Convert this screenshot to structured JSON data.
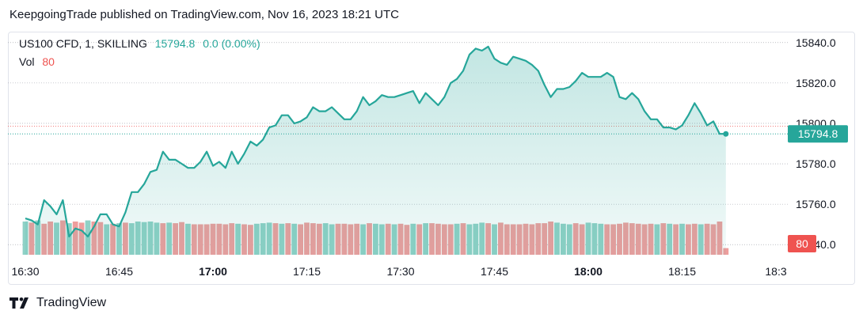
{
  "header": {
    "published": "KeepgoingTrade published on TradingView.com, Nov 16, 2023 18:21 UTC"
  },
  "legend": {
    "symbol": "US100 CFD, 1, SKILLING",
    "last": "15794.8",
    "change": "0.0 (0.00%)",
    "vol_label": "Vol",
    "vol_value": "80"
  },
  "footer": {
    "brand": "TradingView"
  },
  "colors": {
    "line": "#26a69a",
    "up": "#26a69a",
    "down": "#ef5350",
    "up_bar": "#8fd1c6",
    "down_bar": "#ee9e9d"
  },
  "chart_data": {
    "type": "area",
    "ylim": [
      15735,
      15845
    ],
    "x_range_minutes": [
      0,
      125
    ],
    "yticks": [
      "15840.0",
      "15820.0",
      "15800.0",
      "15780.0",
      "15760.0",
      "15740.0"
    ],
    "ytick_values": [
      15840,
      15820,
      15800,
      15780,
      15760,
      15740
    ],
    "xticks": [
      {
        "label": "16:30",
        "minute": 0,
        "bold": false
      },
      {
        "label": "16:45",
        "minute": 15,
        "bold": false
      },
      {
        "label": "17:00",
        "minute": 30,
        "bold": true
      },
      {
        "label": "17:15",
        "minute": 45,
        "bold": false
      },
      {
        "label": "17:30",
        "minute": 60,
        "bold": false
      },
      {
        "label": "17:45",
        "minute": 75,
        "bold": false
      },
      {
        "label": "18:00",
        "minute": 90,
        "bold": true
      },
      {
        "label": "18:15",
        "minute": 105,
        "bold": false
      },
      {
        "label": "18:3",
        "minute": 120,
        "bold": false
      }
    ],
    "price_label": "15794.8",
    "last_price": 15794.8,
    "vol_label": "80",
    "price": [
      [
        0,
        15753
      ],
      [
        1,
        15752
      ],
      [
        2,
        15750
      ],
      [
        3,
        15762
      ],
      [
        4,
        15759
      ],
      [
        5,
        15755
      ],
      [
        6,
        15762
      ],
      [
        7,
        15744
      ],
      [
        8,
        15748
      ],
      [
        9,
        15747
      ],
      [
        10,
        15744
      ],
      [
        11,
        15749
      ],
      [
        12,
        15755
      ],
      [
        13,
        15755
      ],
      [
        14,
        15750
      ],
      [
        15,
        15749
      ],
      [
        16,
        15756
      ],
      [
        17,
        15766
      ],
      [
        18,
        15766
      ],
      [
        19,
        15770
      ],
      [
        20,
        15776
      ],
      [
        21,
        15777
      ],
      [
        22,
        15786
      ],
      [
        23,
        15782
      ],
      [
        24,
        15782
      ],
      [
        25,
        15780
      ],
      [
        26,
        15778
      ],
      [
        27,
        15778
      ],
      [
        28,
        15781
      ],
      [
        29,
        15786
      ],
      [
        30,
        15779
      ],
      [
        31,
        15781
      ],
      [
        32,
        15778
      ],
      [
        33,
        15786
      ],
      [
        34,
        15780
      ],
      [
        35,
        15785
      ],
      [
        36,
        15791
      ],
      [
        37,
        15789
      ],
      [
        38,
        15792
      ],
      [
        39,
        15798
      ],
      [
        40,
        15799
      ],
      [
        41,
        15804
      ],
      [
        42,
        15804
      ],
      [
        43,
        15800
      ],
      [
        44,
        15801
      ],
      [
        45,
        15803
      ],
      [
        46,
        15808
      ],
      [
        47,
        15806
      ],
      [
        48,
        15806
      ],
      [
        49,
        15808
      ],
      [
        50,
        15805
      ],
      [
        51,
        15802
      ],
      [
        52,
        15802
      ],
      [
        53,
        15806
      ],
      [
        54,
        15813
      ],
      [
        55,
        15809
      ],
      [
        56,
        15811
      ],
      [
        57,
        15814
      ],
      [
        58,
        15813
      ],
      [
        59,
        15813
      ],
      [
        60,
        15814
      ],
      [
        61,
        15815
      ],
      [
        62,
        15816
      ],
      [
        63,
        15810
      ],
      [
        64,
        15815
      ],
      [
        65,
        15812
      ],
      [
        66,
        15809
      ],
      [
        67,
        15813
      ],
      [
        68,
        15820
      ],
      [
        69,
        15822
      ],
      [
        70,
        15826
      ],
      [
        71,
        15834
      ],
      [
        72,
        15837
      ],
      [
        73,
        15836
      ],
      [
        74,
        15838
      ],
      [
        75,
        15832
      ],
      [
        76,
        15830
      ],
      [
        77,
        15829
      ],
      [
        78,
        15833
      ],
      [
        79,
        15832
      ],
      [
        80,
        15831
      ],
      [
        81,
        15829
      ],
      [
        82,
        15826
      ],
      [
        83,
        15819
      ],
      [
        84,
        15813
      ],
      [
        85,
        15817
      ],
      [
        86,
        15817
      ],
      [
        87,
        15818
      ],
      [
        88,
        15821
      ],
      [
        89,
        15825
      ],
      [
        90,
        15823
      ],
      [
        91,
        15823
      ],
      [
        92,
        15823
      ],
      [
        93,
        15825
      ],
      [
        94,
        15823
      ],
      [
        95,
        15813
      ],
      [
        96,
        15812
      ],
      [
        97,
        15815
      ],
      [
        98,
        15812
      ],
      [
        99,
        15806
      ],
      [
        100,
        15802
      ],
      [
        101,
        15802
      ],
      [
        102,
        15798
      ],
      [
        103,
        15798
      ],
      [
        104,
        15797
      ],
      [
        105,
        15799
      ],
      [
        106,
        15804
      ],
      [
        107,
        15810
      ],
      [
        108,
        15805
      ],
      [
        109,
        15799
      ],
      [
        110,
        15801
      ],
      [
        111,
        15794.8
      ],
      [
        112,
        15794.8
      ]
    ],
    "volume": [
      [
        0,
        "u",
        60
      ],
      [
        1,
        "d",
        58
      ],
      [
        2,
        "u",
        62
      ],
      [
        3,
        "d",
        56
      ],
      [
        4,
        "d",
        60
      ],
      [
        5,
        "u",
        58
      ],
      [
        6,
        "d",
        62
      ],
      [
        7,
        "u",
        57
      ],
      [
        8,
        "d",
        60
      ],
      [
        9,
        "d",
        58
      ],
      [
        10,
        "u",
        62
      ],
      [
        11,
        "d",
        60
      ],
      [
        12,
        "d",
        59
      ],
      [
        13,
        "u",
        55
      ],
      [
        14,
        "d",
        56
      ],
      [
        15,
        "u",
        57
      ],
      [
        16,
        "d",
        58
      ],
      [
        17,
        "u",
        57
      ],
      [
        18,
        "u",
        60
      ],
      [
        19,
        "u",
        59
      ],
      [
        20,
        "u",
        60
      ],
      [
        21,
        "u",
        58
      ],
      [
        22,
        "d",
        57
      ],
      [
        23,
        "u",
        58
      ],
      [
        24,
        "d",
        57
      ],
      [
        25,
        "d",
        59
      ],
      [
        26,
        "u",
        56
      ],
      [
        27,
        "d",
        55
      ],
      [
        28,
        "d",
        55
      ],
      [
        29,
        "d",
        55
      ],
      [
        30,
        "d",
        56
      ],
      [
        31,
        "d",
        56
      ],
      [
        32,
        "d",
        55
      ],
      [
        33,
        "d",
        57
      ],
      [
        34,
        "u",
        56
      ],
      [
        35,
        "d",
        55
      ],
      [
        36,
        "d",
        54
      ],
      [
        37,
        "u",
        56
      ],
      [
        38,
        "u",
        57
      ],
      [
        39,
        "u",
        58
      ],
      [
        40,
        "d",
        57
      ],
      [
        41,
        "u",
        56
      ],
      [
        42,
        "d",
        57
      ],
      [
        43,
        "u",
        56
      ],
      [
        44,
        "d",
        55
      ],
      [
        45,
        "d",
        58
      ],
      [
        46,
        "d",
        57
      ],
      [
        47,
        "d",
        56
      ],
      [
        48,
        "u",
        57
      ],
      [
        49,
        "u",
        55
      ],
      [
        50,
        "d",
        56
      ],
      [
        51,
        "d",
        56
      ],
      [
        52,
        "d",
        55
      ],
      [
        53,
        "d",
        56
      ],
      [
        54,
        "u",
        55
      ],
      [
        55,
        "d",
        57
      ],
      [
        56,
        "u",
        56
      ],
      [
        57,
        "u",
        55
      ],
      [
        58,
        "d",
        56
      ],
      [
        59,
        "u",
        55
      ],
      [
        60,
        "d",
        56
      ],
      [
        61,
        "d",
        54
      ],
      [
        62,
        "u",
        56
      ],
      [
        63,
        "d",
        55
      ],
      [
        64,
        "u",
        57
      ],
      [
        65,
        "d",
        57
      ],
      [
        66,
        "d",
        56
      ],
      [
        67,
        "d",
        55
      ],
      [
        68,
        "d",
        55
      ],
      [
        69,
        "u",
        56
      ],
      [
        70,
        "d",
        57
      ],
      [
        71,
        "u",
        55
      ],
      [
        72,
        "u",
        56
      ],
      [
        73,
        "u",
        58
      ],
      [
        74,
        "d",
        57
      ],
      [
        75,
        "u",
        55
      ],
      [
        76,
        "d",
        58
      ],
      [
        77,
        "d",
        55
      ],
      [
        78,
        "d",
        55
      ],
      [
        79,
        "d",
        55
      ],
      [
        80,
        "d",
        56
      ],
      [
        81,
        "d",
        55
      ],
      [
        82,
        "d",
        57
      ],
      [
        83,
        "d",
        57
      ],
      [
        84,
        "d",
        60
      ],
      [
        85,
        "u",
        58
      ],
      [
        86,
        "u",
        56
      ],
      [
        87,
        "u",
        55
      ],
      [
        88,
        "d",
        57
      ],
      [
        89,
        "d",
        55
      ],
      [
        90,
        "u",
        58
      ],
      [
        91,
        "u",
        57
      ],
      [
        92,
        "u",
        56
      ],
      [
        93,
        "d",
        55
      ],
      [
        94,
        "d",
        55
      ],
      [
        95,
        "d",
        56
      ],
      [
        96,
        "d",
        58
      ],
      [
        97,
        "d",
        57
      ],
      [
        98,
        "d",
        56
      ],
      [
        99,
        "d",
        55
      ],
      [
        100,
        "d",
        56
      ],
      [
        101,
        "u",
        55
      ],
      [
        102,
        "d",
        57
      ],
      [
        103,
        "u",
        56
      ],
      [
        104,
        "d",
        55
      ],
      [
        105,
        "u",
        56
      ],
      [
        106,
        "d",
        55
      ],
      [
        107,
        "d",
        56
      ],
      [
        108,
        "u",
        55
      ],
      [
        109,
        "d",
        56
      ],
      [
        110,
        "d",
        55
      ],
      [
        111,
        "d",
        60
      ],
      [
        112,
        "d",
        12
      ]
    ]
  }
}
